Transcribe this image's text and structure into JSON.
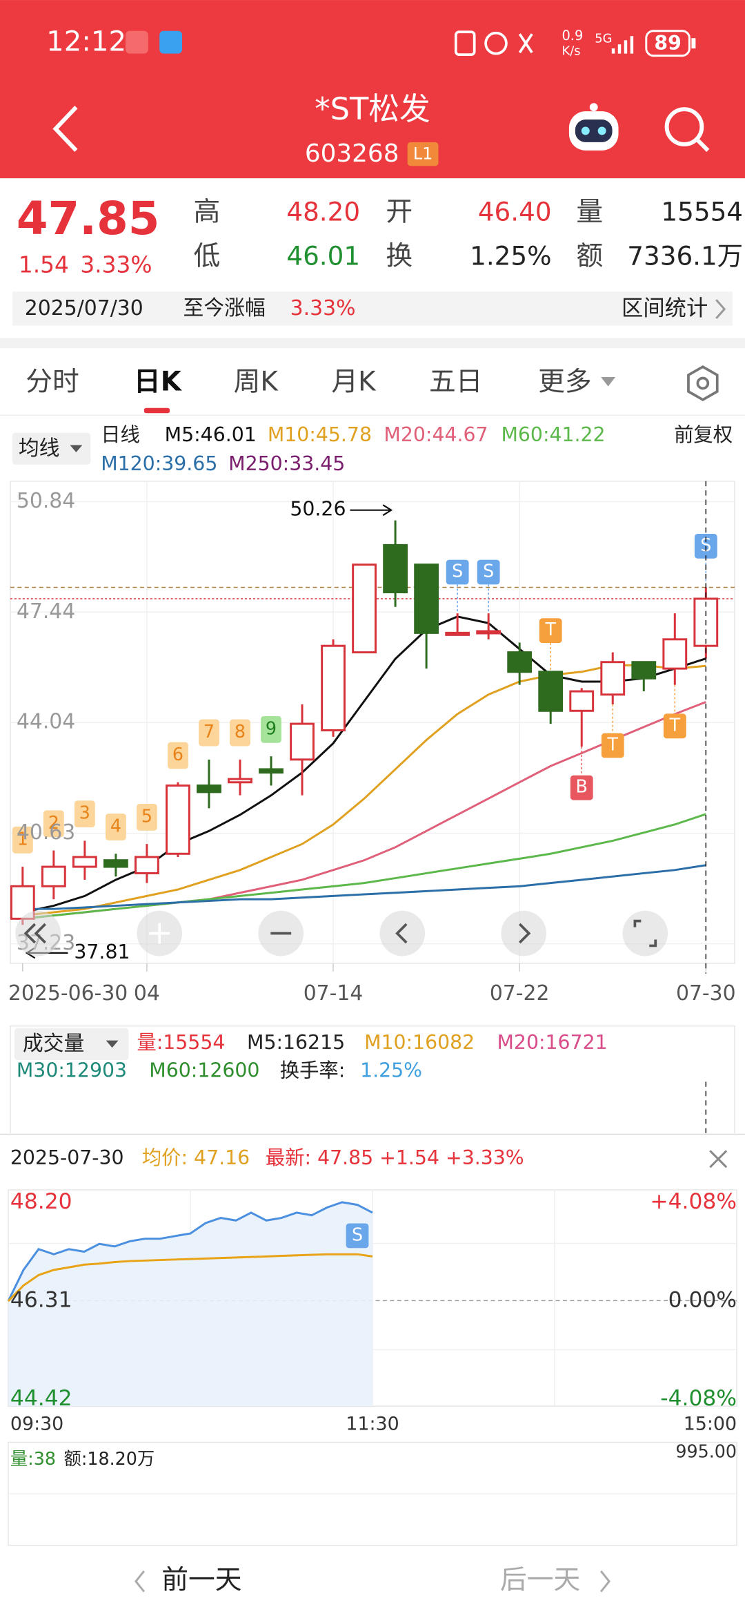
{
  "status_bar": {
    "time": "12:12",
    "net_speed": "0.9",
    "net_unit": "K/s",
    "network": "5G",
    "battery": "89"
  },
  "header": {
    "title": "*ST松发",
    "code": "603268",
    "level": "L1"
  },
  "quote": {
    "price": "47.85",
    "change": "1.54",
    "change_pct": "3.33%",
    "high_label": "高",
    "high": "48.20",
    "open_label": "开",
    "open": "46.40",
    "volume_label": "量",
    "volume": "15554",
    "low_label": "低",
    "low": "46.01",
    "turnover_label": "换",
    "turnover": "1.25%",
    "amount_label": "额",
    "amount": "7336.1万",
    "date": "2025/07/30",
    "range_label": "至今涨幅",
    "range_pct": "3.33%",
    "stats": "区间统计"
  },
  "tabs": [
    "分时",
    "日K",
    "周K",
    "月K",
    "五日",
    "更多"
  ],
  "indicators": {
    "selector": "均线",
    "line_label": "日线",
    "extra": {
      "text": "M250:33.45",
      "color": "#7a1f6e"
    },
    "adjust": "前复权"
  },
  "volume_panel": {
    "selector": "成交量",
    "items": [
      {
        "text": "量:15554",
        "color": "#e5323b"
      },
      {
        "text": "M5:16215",
        "color": "#222222"
      },
      {
        "text": "M10:16082",
        "color": "#e0a020"
      },
      {
        "text": "M20:16721",
        "color": "#d94c8a"
      },
      {
        "text": "M30:12903",
        "color": "#1f8a7a"
      },
      {
        "text": "M60:12600",
        "color": "#2f8f2f"
      },
      {
        "text": "换手率:",
        "color": "#222222"
      },
      {
        "text": "1.25%",
        "color": "#3fa0e0"
      }
    ]
  },
  "chart_data": [
    {
      "type": "candlestick",
      "categories": [
        "2025-06-30",
        null,
        null,
        null,
        "04",
        null,
        null,
        null,
        null,
        null,
        "07-14",
        null,
        null,
        null,
        null,
        null,
        "07-22",
        null,
        null,
        null,
        null,
        null,
        "07-30"
      ],
      "open": [
        38.0,
        39.0,
        39.6,
        39.8,
        39.4,
        40.0,
        42.1,
        42.2,
        42.6,
        42.9,
        43.8,
        46.2,
        49.5,
        48.9,
        46.75,
        46.8,
        46.2,
        45.6,
        44.4,
        44.9,
        45.9,
        45.7,
        46.4
      ],
      "high": [
        39.6,
        40.1,
        40.4,
        40.0,
        40.3,
        42.2,
        42.9,
        42.9,
        43.0,
        44.6,
        46.6,
        48.9,
        50.26,
        48.9,
        47.4,
        47.4,
        46.5,
        45.6,
        45.1,
        46.2,
        45.9,
        47.4,
        48.2
      ],
      "low": [
        37.81,
        38.6,
        39.2,
        39.3,
        39.1,
        39.9,
        41.4,
        41.8,
        42.1,
        41.8,
        43.6,
        46.2,
        47.6,
        45.7,
        46.75,
        46.6,
        45.2,
        44.0,
        43.3,
        44.6,
        45.0,
        45.2,
        46.01
      ],
      "close": [
        39.0,
        39.6,
        39.9,
        39.6,
        39.9,
        42.1,
        41.9,
        42.3,
        42.5,
        44.0,
        46.4,
        48.9,
        48.05,
        46.8,
        46.8,
        46.85,
        45.6,
        44.4,
        45.0,
        45.9,
        45.4,
        46.6,
        47.85
      ],
      "up_color": "#d6333b",
      "down_color": "#2e6b1e",
      "series": [
        {
          "name": "M5:46.01",
          "color": "#111111",
          "values": [
            38.2,
            38.4,
            38.7,
            39.2,
            39.6,
            40.3,
            40.7,
            41.2,
            41.8,
            42.5,
            43.4,
            44.7,
            46.0,
            46.9,
            47.3,
            47.1,
            46.3,
            45.5,
            45.3,
            45.3,
            45.4,
            45.7,
            46.01
          ]
        },
        {
          "name": "M10:45.78",
          "color": "#e0a020",
          "values": [
            38.1,
            38.2,
            38.3,
            38.5,
            38.7,
            38.9,
            39.2,
            39.5,
            39.9,
            40.3,
            40.9,
            41.7,
            42.6,
            43.5,
            44.3,
            44.9,
            45.3,
            45.5,
            45.6,
            45.8,
            45.8,
            45.7,
            45.78
          ]
        },
        {
          "name": "M20:44.67",
          "color": "#e0607a",
          "values": [
            38.0,
            38.1,
            38.2,
            38.3,
            38.4,
            38.5,
            38.6,
            38.8,
            39.0,
            39.2,
            39.5,
            39.8,
            40.2,
            40.7,
            41.2,
            41.7,
            42.2,
            42.7,
            43.1,
            43.5,
            43.9,
            44.3,
            44.67
          ]
        },
        {
          "name": "M60:41.22",
          "color": "#5cb84a",
          "values": [
            38.0,
            38.1,
            38.2,
            38.3,
            38.4,
            38.5,
            38.6,
            38.7,
            38.8,
            38.9,
            39.0,
            39.1,
            39.25,
            39.4,
            39.55,
            39.7,
            39.85,
            40.0,
            40.2,
            40.4,
            40.65,
            40.9,
            41.22
          ]
        },
        {
          "name": "M120:39.65",
          "color": "#2b6ea8",
          "values": [
            38.3,
            38.3,
            38.35,
            38.4,
            38.45,
            38.5,
            38.55,
            38.6,
            38.6,
            38.65,
            38.7,
            38.75,
            38.8,
            38.85,
            38.9,
            38.95,
            39.0,
            39.1,
            39.2,
            39.3,
            39.4,
            39.5,
            39.65
          ]
        }
      ],
      "td": [
        1,
        2,
        3,
        4,
        5,
        6,
        7,
        8,
        9,
        null,
        null,
        null,
        null,
        null,
        null,
        null,
        null,
        null,
        null,
        null,
        null,
        null,
        null
      ],
      "signals_above": [
        null,
        null,
        null,
        null,
        null,
        null,
        null,
        null,
        null,
        null,
        null,
        null,
        null,
        null,
        "S",
        "S",
        null,
        "T",
        null,
        null,
        null,
        null,
        "S"
      ],
      "signals_below": [
        null,
        null,
        null,
        null,
        null,
        null,
        null,
        null,
        null,
        null,
        null,
        null,
        null,
        null,
        null,
        null,
        null,
        null,
        "B",
        "T",
        null,
        "T",
        null
      ],
      "high_label": "50.26",
      "low_label": "37.81",
      "ylim": [
        36.63,
        51.47
      ],
      "yticks": [
        50.84,
        47.44,
        44.04,
        40.63,
        37.23
      ],
      "grid": true
    },
    {
      "type": "line",
      "title": "2025-07-30",
      "avg_label": "均价: 47.16",
      "latest_label": "最新: 47.85 +1.54 +3.33%",
      "x": [
        "09:30",
        "09:35",
        "09:40",
        "09:45",
        "09:50",
        "09:55",
        "10:00",
        "10:05",
        "10:10",
        "10:15",
        "10:20",
        "10:25",
        "10:30",
        "10:35",
        "10:40",
        "10:45",
        "10:50",
        "10:55",
        "11:00",
        "11:05",
        "11:10",
        "11:15",
        "11:20",
        "11:25",
        "11:30"
      ],
      "series": [
        {
          "name": "price",
          "color": "#4a8fe0",
          "values": [
            46.3,
            46.9,
            47.3,
            47.2,
            47.3,
            47.25,
            47.4,
            47.35,
            47.45,
            47.5,
            47.5,
            47.55,
            47.6,
            47.8,
            47.9,
            47.85,
            48.0,
            47.85,
            47.9,
            48.0,
            47.95,
            48.1,
            48.2,
            48.15,
            48.0
          ]
        },
        {
          "name": "avg",
          "color": "#e8a317",
          "values": [
            46.3,
            46.6,
            46.8,
            46.9,
            46.95,
            47.0,
            47.02,
            47.05,
            47.07,
            47.08,
            47.09,
            47.1,
            47.11,
            47.12,
            47.13,
            47.14,
            47.15,
            47.16,
            47.17,
            47.18,
            47.19,
            47.2,
            47.2,
            47.2,
            47.16
          ]
        }
      ],
      "signals_below": [
        null,
        null,
        null,
        null,
        null,
        null,
        null,
        null,
        null,
        null,
        null,
        null,
        null,
        null,
        null,
        null,
        null,
        null,
        null,
        null,
        null,
        null,
        null,
        "S",
        null
      ],
      "xticks": [
        "09:30",
        "11:30",
        "15:00"
      ],
      "ylim": [
        44.42,
        48.2
      ],
      "yticks": [
        {
          "value": 48.2,
          "label": "48.20"
        },
        46.31,
        44.42
      ],
      "y2lim": [
        -4.08,
        4.08
      ],
      "y2ticks": [
        {
          "value": 4.08,
          "label": "+4.08%"
        },
        {
          "value": 0,
          "label": "0.00%"
        },
        {
          "value": -4.08,
          "label": "-4.08%"
        }
      ],
      "volume_label": "量:38",
      "amount_label": "额:18.20万",
      "volume_max": "995.00"
    }
  ],
  "nav": {
    "prev": "前一天",
    "next": "后一天"
  }
}
